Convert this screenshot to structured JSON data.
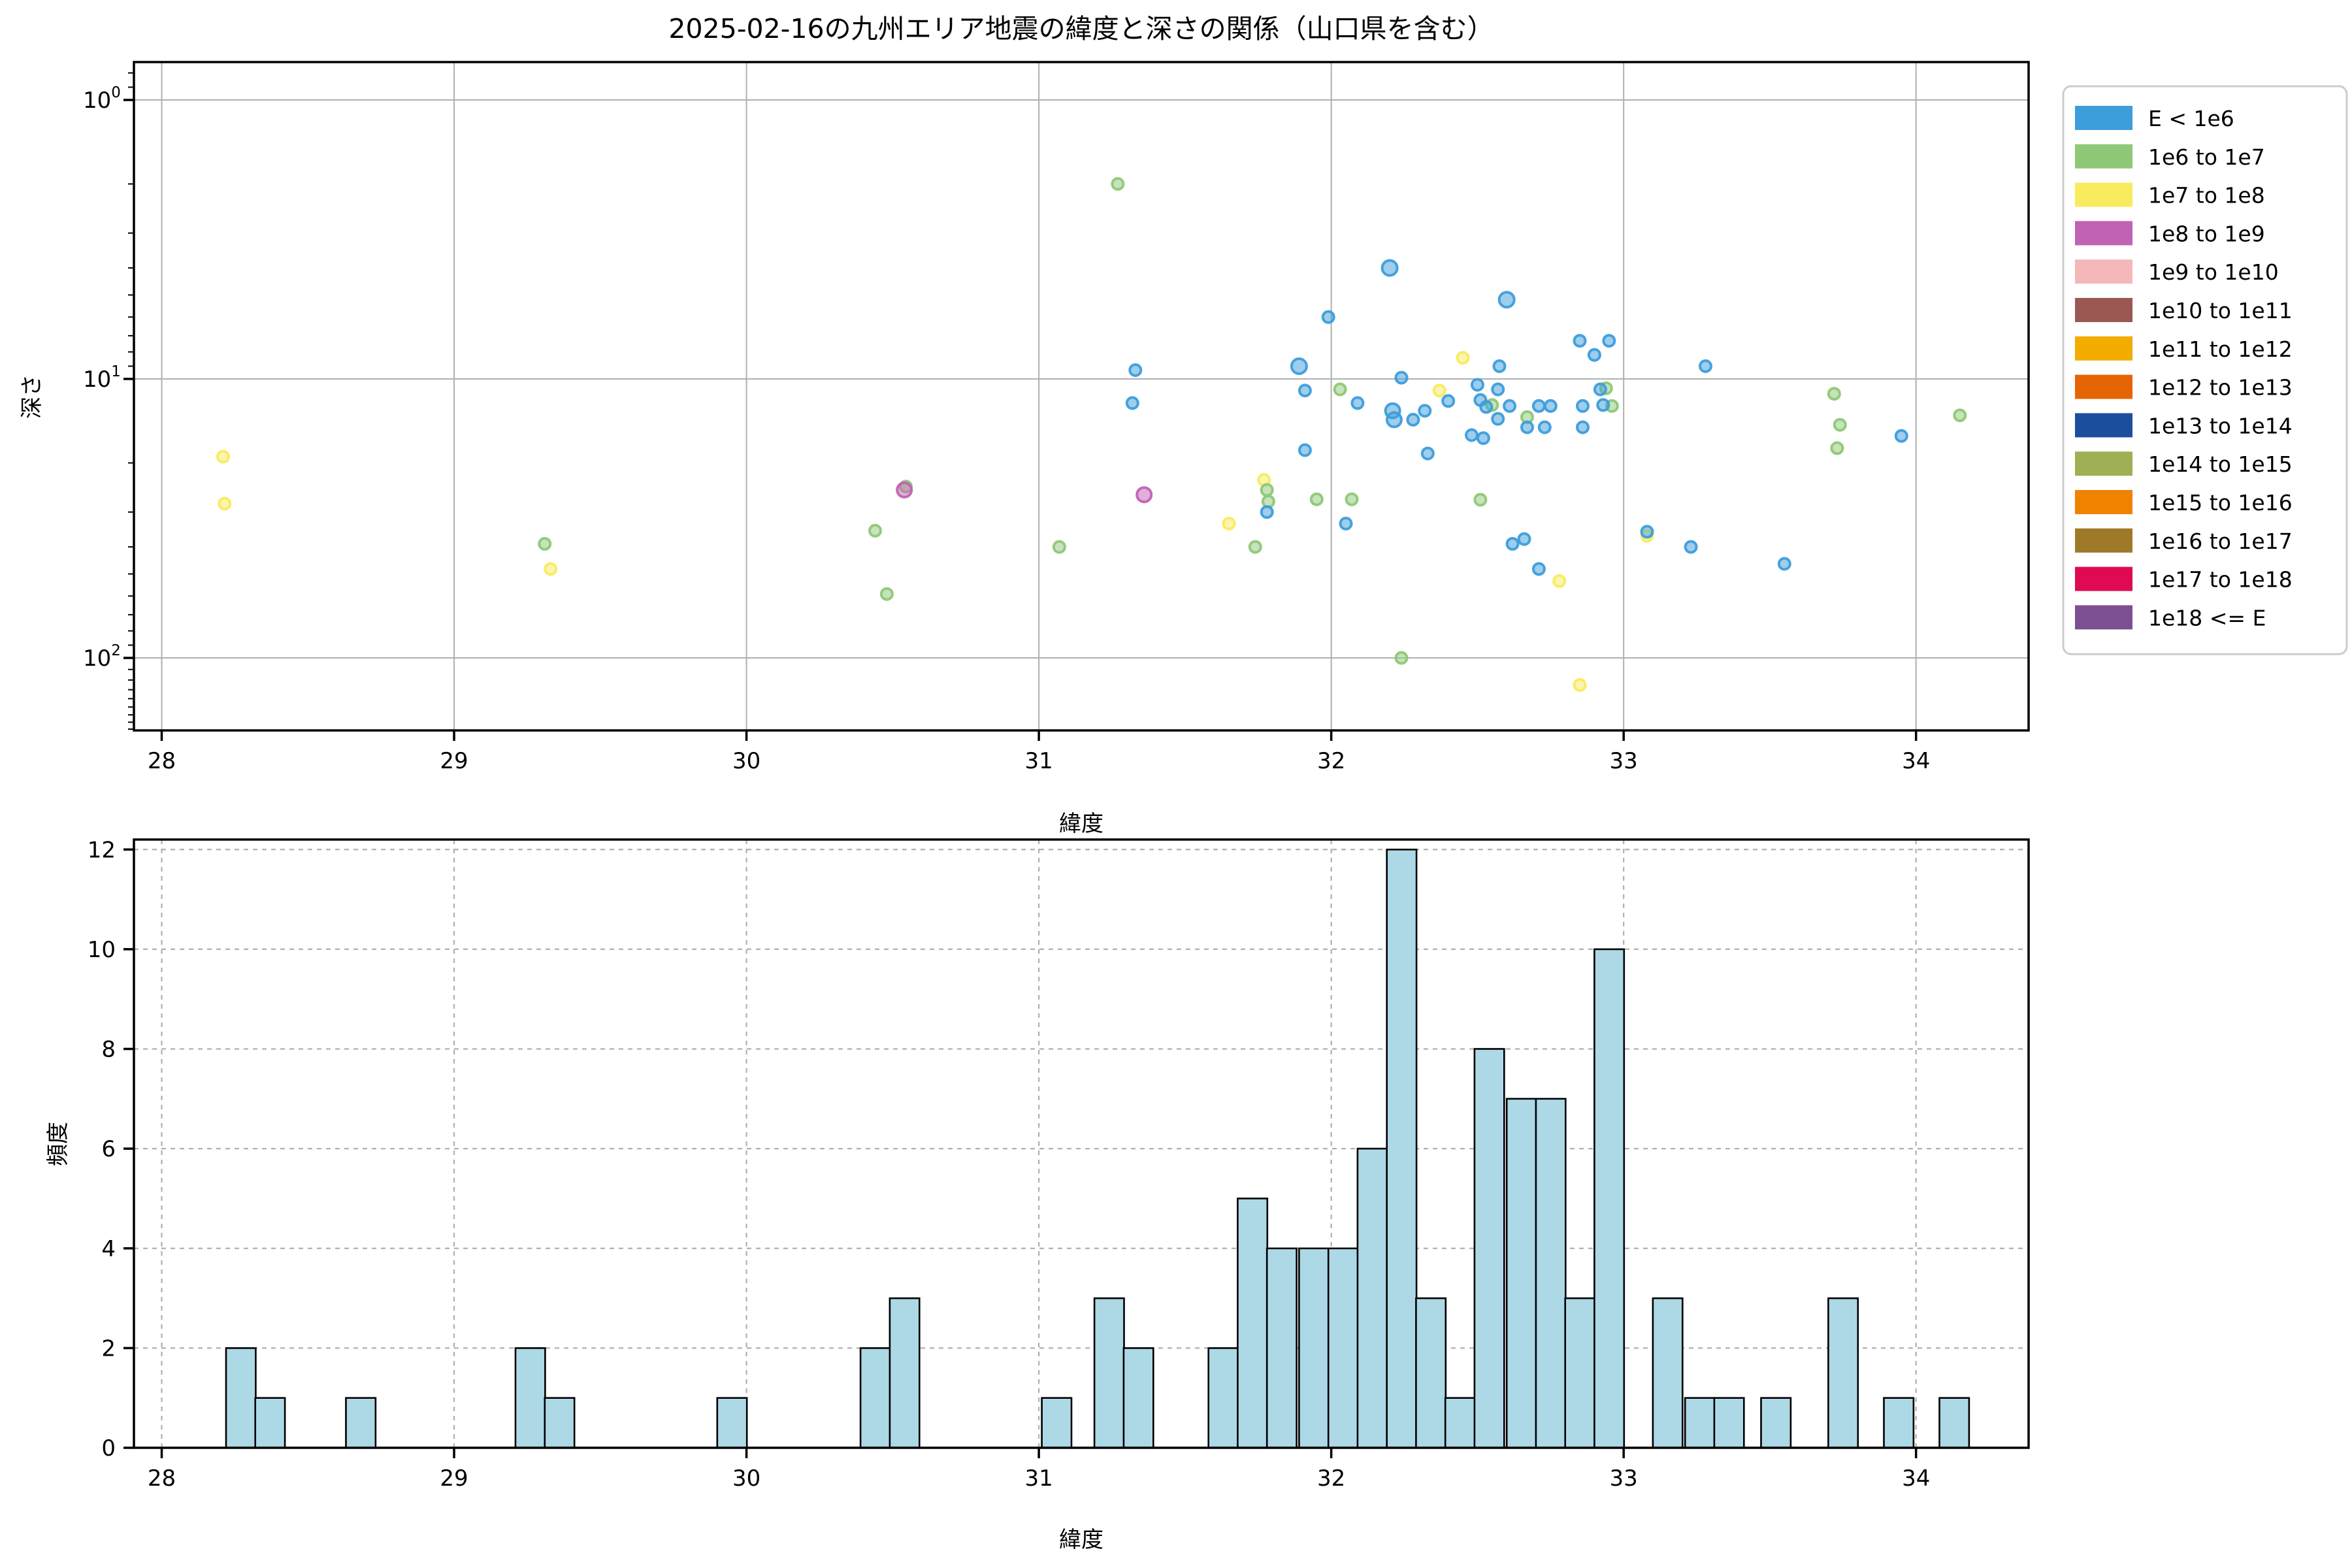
{
  "figure_title": "2025-02-16の九州エリア地震の緯度と深さの関係（山口県を含む）",
  "chart_data": [
    {
      "type": "scatter",
      "title": "2025-02-16の九州エリア地震の緯度と深さの関係（山口県を含む）",
      "xlabel": "緯度",
      "ylabel": "深さ",
      "x_ticks": [
        28,
        29,
        30,
        31,
        32,
        33,
        34
      ],
      "y_ticks_depth": [
        1,
        10,
        100
      ],
      "xlim": [
        27.905,
        34.385
      ],
      "ylim_depth": [
        0.73,
        182
      ],
      "y_scale": "log",
      "y_inverted": true,
      "grid": "solid",
      "grid_color": "#b0b0b0",
      "legend_position": "outside upper right",
      "legend": [
        {
          "label": "E < 1e6",
          "color": "#3e9ddb"
        },
        {
          "label": "1e6 to 1e7",
          "color": "#8fc877"
        },
        {
          "label": "1e7 to 1e8",
          "color": "#f8eb5f"
        },
        {
          "label": "1e8 to 1e9",
          "color": "#c162b4"
        },
        {
          "label": "1e9 to 1e10",
          "color": "#f4b8bb"
        },
        {
          "label": "1e10 to 1e11",
          "color": "#9b5752"
        },
        {
          "label": "1e11 to 1e12",
          "color": "#f3ac00"
        },
        {
          "label": "1e12 to 1e13",
          "color": "#e56503"
        },
        {
          "label": "1e13 to 1e14",
          "color": "#1c4e9e"
        },
        {
          "label": "1e14 to 1e15",
          "color": "#9db053"
        },
        {
          "label": "1e15 to 1e16",
          "color": "#f08200"
        },
        {
          "label": "1e16 to 1e17",
          "color": "#9e7a28"
        },
        {
          "label": "1e17 to 1e18",
          "color": "#e00a54"
        },
        {
          "label": "1e18 <= E",
          "color": "#7c4f92"
        }
      ],
      "points_format": [
        "lat",
        "depth_km",
        "legend_bin_index",
        "radius_px_optional"
      ],
      "points": [
        [
          28.21,
          19,
          2
        ],
        [
          28.215,
          28,
          2
        ],
        [
          29.33,
          48,
          2
        ],
        [
          31.65,
          33,
          2
        ],
        [
          31.77,
          23,
          2
        ],
        [
          32.37,
          11,
          2
        ],
        [
          32.45,
          8.4,
          2
        ],
        [
          32.78,
          53,
          2
        ],
        [
          32.85,
          125,
          2
        ],
        [
          33.08,
          36.5,
          2
        ],
        [
          29.31,
          39,
          1
        ],
        [
          30.44,
          35,
          1
        ],
        [
          30.48,
          59,
          1
        ],
        [
          30.545,
          24.3,
          1
        ],
        [
          31.07,
          40,
          1
        ],
        [
          31.27,
          2.0,
          1
        ],
        [
          31.78,
          25,
          1
        ],
        [
          31.785,
          27.5,
          1
        ],
        [
          31.74,
          40,
          1
        ],
        [
          31.95,
          27,
          1
        ],
        [
          32.03,
          10.9,
          1
        ],
        [
          32.07,
          27,
          1
        ],
        [
          32.24,
          100,
          1
        ],
        [
          32.51,
          27.1,
          1
        ],
        [
          32.55,
          12.4,
          1
        ],
        [
          32.67,
          13.7,
          1
        ],
        [
          32.94,
          10.8,
          1
        ],
        [
          32.96,
          12.5,
          1
        ],
        [
          33.72,
          11.3,
          1
        ],
        [
          33.74,
          14.6,
          1
        ],
        [
          33.73,
          17.7,
          1
        ],
        [
          34.15,
          13.5,
          1
        ],
        [
          30.54,
          25,
          3,
          11
        ],
        [
          31.36,
          26,
          3,
          11
        ],
        [
          31.33,
          9.3,
          0
        ],
        [
          31.32,
          12.2,
          0
        ],
        [
          31.78,
          30,
          0
        ],
        [
          31.89,
          9.0,
          0,
          11.5
        ],
        [
          31.91,
          11.0,
          0
        ],
        [
          31.91,
          18,
          0
        ],
        [
          31.99,
          6.0,
          0
        ],
        [
          32.05,
          33,
          0
        ],
        [
          32.09,
          12.2,
          0
        ],
        [
          32.2,
          4.0,
          0,
          11.5
        ],
        [
          32.21,
          13,
          0,
          11
        ],
        [
          32.215,
          14,
          0,
          11
        ],
        [
          32.24,
          9.9,
          0
        ],
        [
          32.28,
          14,
          0
        ],
        [
          32.32,
          13,
          0
        ],
        [
          32.4,
          12,
          0
        ],
        [
          32.33,
          18.5,
          0
        ],
        [
          32.5,
          10.5,
          0
        ],
        [
          32.51,
          11.9,
          0
        ],
        [
          32.53,
          12.6,
          0
        ],
        [
          32.57,
          10.9,
          0
        ],
        [
          32.57,
          13.9,
          0
        ],
        [
          32.61,
          12.5,
          0
        ],
        [
          32.48,
          15.9,
          0
        ],
        [
          32.52,
          16.3,
          0
        ],
        [
          32.575,
          9.0,
          0
        ],
        [
          32.6,
          5.2,
          0,
          11.5
        ],
        [
          32.67,
          14.9,
          0
        ],
        [
          32.71,
          12.5,
          0
        ],
        [
          32.75,
          12.5,
          0
        ],
        [
          32.73,
          14.9,
          0
        ],
        [
          32.85,
          7.3,
          0
        ],
        [
          32.9,
          8.2,
          0
        ],
        [
          32.95,
          7.3,
          0
        ],
        [
          32.86,
          12.5,
          0
        ],
        [
          32.86,
          14.9,
          0
        ],
        [
          32.92,
          10.9,
          0
        ],
        [
          32.93,
          12.4,
          0
        ],
        [
          32.62,
          39,
          0
        ],
        [
          32.66,
          37.5,
          0
        ],
        [
          32.71,
          48,
          0
        ],
        [
          33.08,
          35.3,
          0
        ],
        [
          33.23,
          40,
          0
        ],
        [
          33.28,
          9.0,
          0
        ],
        [
          33.55,
          46,
          0
        ],
        [
          33.95,
          16,
          0
        ]
      ]
    },
    {
      "type": "bar",
      "subtype": "histogram",
      "xlabel": "緯度",
      "ylabel": "頻度",
      "x_ticks": [
        28,
        29,
        30,
        31,
        32,
        33,
        34
      ],
      "y_ticks": [
        0,
        2,
        4,
        6,
        8,
        10,
        12
      ],
      "xlim": [
        27.905,
        34.385
      ],
      "ylim": [
        0,
        12.2
      ],
      "grid": "dashed",
      "grid_color": "#b0b0b0",
      "bar_color": "#add8e6",
      "bar_edge_color": "#000000",
      "bin_width": 0.1014,
      "bars_format": [
        "bin_left_lat",
        "count"
      ],
      "bars": [
        [
          28.22,
          2
        ],
        [
          28.32,
          1
        ],
        [
          28.63,
          1
        ],
        [
          29.21,
          2
        ],
        [
          29.31,
          1
        ],
        [
          29.9,
          1
        ],
        [
          30.39,
          2
        ],
        [
          30.49,
          3
        ],
        [
          31.01,
          1
        ],
        [
          31.19,
          3
        ],
        [
          31.29,
          2
        ],
        [
          31.58,
          2
        ],
        [
          31.68,
          5
        ],
        [
          31.78,
          4
        ],
        [
          31.89,
          4
        ],
        [
          31.99,
          4
        ],
        [
          32.09,
          6
        ],
        [
          32.19,
          12
        ],
        [
          32.29,
          3
        ],
        [
          32.39,
          1
        ],
        [
          32.49,
          8
        ],
        [
          32.6,
          7
        ],
        [
          32.7,
          7
        ],
        [
          32.8,
          3
        ],
        [
          32.9,
          10
        ],
        [
          33.1,
          3
        ],
        [
          33.21,
          1
        ],
        [
          33.31,
          1
        ],
        [
          33.47,
          1
        ],
        [
          33.7,
          3
        ],
        [
          33.89,
          1
        ],
        [
          34.08,
          1
        ]
      ]
    }
  ]
}
